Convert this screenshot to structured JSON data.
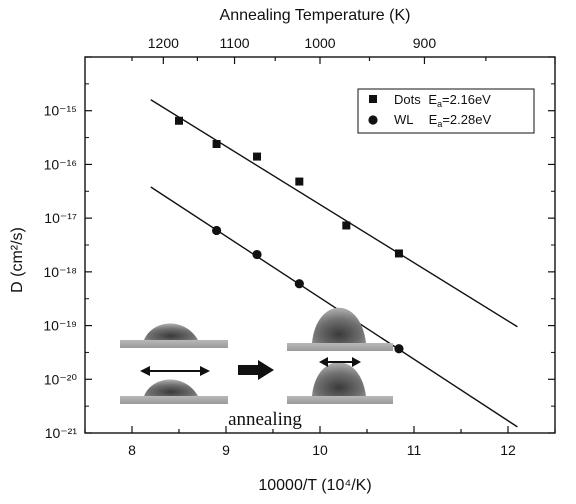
{
  "chart_data": {
    "type": "scatter",
    "xlabel": "10000/T (10⁴/K)",
    "ylabel": "D (cm²/s)",
    "top_axis_label": "Annealing Temperature (K)",
    "xlim": [
      7.5,
      12.5
    ],
    "ylim": [
      1e-21,
      1e-14
    ],
    "yscale": "log",
    "x_ticks": [
      "8",
      "9",
      "10",
      "11",
      "12"
    ],
    "y_ticks": [
      "10⁻¹⁵",
      "10⁻¹⁶",
      "10⁻¹⁷",
      "10⁻¹⁸",
      "10⁻¹⁹",
      "10⁻²⁰",
      "10⁻²¹"
    ],
    "top_ticks": [
      {
        "T": 1200,
        "label": "1200"
      },
      {
        "T": 1100,
        "label": "1100"
      },
      {
        "T": 1000,
        "label": "1000"
      },
      {
        "T": 900,
        "label": "900"
      }
    ],
    "legend_position": "top-right",
    "grid": false,
    "series": [
      {
        "name": "Dots",
        "legend_label": "Dots",
        "ea_label": "E",
        "ea_sub": "a",
        "ea_value": "=2.16eV",
        "marker": "square",
        "points": [
          {
            "x": 8.5,
            "y": 6.5e-16
          },
          {
            "x": 8.9,
            "y": 2.4e-16
          },
          {
            "x": 9.33,
            "y": 1.4e-16
          },
          {
            "x": 9.78,
            "y": 4.8e-17
          },
          {
            "x": 10.28,
            "y": 7.3e-18
          },
          {
            "x": 10.84,
            "y": 2.2e-18
          }
        ],
        "fit": [
          {
            "x": 8.2,
            "y": 1.6e-15
          },
          {
            "x": 12.1,
            "y": 9.5e-20
          }
        ]
      },
      {
        "name": "WL",
        "legend_label": "WL",
        "ea_label": "E",
        "ea_sub": "a",
        "ea_value": "=2.28eV",
        "marker": "circle",
        "points": [
          {
            "x": 8.9,
            "y": 5.9e-18
          },
          {
            "x": 9.33,
            "y": 2.1e-18
          },
          {
            "x": 9.78,
            "y": 6e-19
          },
          {
            "x": 10.28,
            "y": 1.6e-19
          },
          {
            "x": 10.84,
            "y": 3.7e-20
          }
        ],
        "fit": [
          {
            "x": 8.2,
            "y": 3.8e-17
          },
          {
            "x": 12.1,
            "y": 1.3e-21
          }
        ]
      }
    ],
    "annotation": "annealing"
  }
}
